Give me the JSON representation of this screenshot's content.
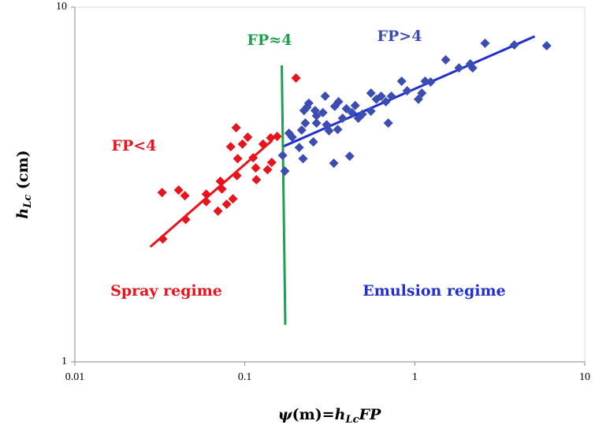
{
  "chart_data": {
    "type": "scatter",
    "xlabel_parts": [
      "ψ",
      "(m)=",
      "h",
      "Lc",
      "FP"
    ],
    "ylabel_parts": [
      "h",
      "Lc",
      " (cm)"
    ],
    "xlog": true,
    "ylog": true,
    "xlim": [
      0.01,
      10
    ],
    "ylim": [
      1,
      10
    ],
    "xticks": [
      0.01,
      0.1,
      1,
      10
    ],
    "yticks": [
      1,
      10
    ],
    "series": [
      {
        "color": "#e8141c",
        "x": [
          0.0326,
          0.0329,
          0.0408,
          0.0444,
          0.0449,
          0.0593,
          0.0593,
          0.0695,
          0.0718,
          0.0734,
          0.0782,
          0.0826,
          0.0851,
          0.0889,
          0.0899,
          0.0908,
          0.0968,
          0.104,
          0.112,
          0.116,
          0.117,
          0.128,
          0.136,
          0.142,
          0.144,
          0.155,
          0.2
        ],
        "values": [
          3.0,
          2.22,
          3.05,
          2.94,
          2.52,
          2.97,
          2.83,
          2.66,
          3.23,
          3.07,
          2.78,
          4.04,
          2.88,
          4.57,
          3.35,
          3.74,
          4.11,
          4.3,
          3.76,
          3.52,
          3.26,
          4.11,
          3.48,
          4.28,
          3.65,
          4.32,
          6.31
        ]
      },
      {
        "color": "#3b4db3",
        "x": [
          0.167,
          0.172,
          0.182,
          0.19,
          0.209,
          0.216,
          0.22,
          0.223,
          0.227,
          0.232,
          0.238,
          0.253,
          0.259,
          0.264,
          0.264,
          0.288,
          0.297,
          0.303,
          0.313,
          0.334,
          0.338,
          0.352,
          0.356,
          0.376,
          0.396,
          0.414,
          0.427,
          0.446,
          0.465,
          0.491,
          0.552,
          0.552,
          0.594,
          0.634,
          0.676,
          0.698,
          0.728,
          0.837,
          0.902,
          1.05,
          1.1,
          1.15,
          1.24,
          1.52,
          1.82,
          2.12,
          2.19,
          2.59,
          3.85,
          5.97
        ],
        "values": [
          3.82,
          3.45,
          4.41,
          4.3,
          4.02,
          4.5,
          3.74,
          5.11,
          4.71,
          5.22,
          5.36,
          4.17,
          5.11,
          4.71,
          4.94,
          5.04,
          5.61,
          4.66,
          4.48,
          3.63,
          5.25,
          4.52,
          5.41,
          4.86,
          5.17,
          3.8,
          5.04,
          5.28,
          4.86,
          4.99,
          5.72,
          5.09,
          5.5,
          5.61,
          5.41,
          4.71,
          5.61,
          6.18,
          5.81,
          5.5,
          5.72,
          6.18,
          6.15,
          7.1,
          6.74,
          6.92,
          6.74,
          7.91,
          7.82,
          7.78
        ]
      }
    ],
    "lines": [
      {
        "color": "#e8141c",
        "x": [
          0.0278,
          0.145
        ],
        "values": [
          2.11,
          4.21
        ]
      },
      {
        "color": "#1f2fd0",
        "x": [
          0.167,
          5.08
        ],
        "values": [
          4.04,
          8.27
        ]
      },
      {
        "color": "#1fa050",
        "x": [
          0.165,
          0.173
        ],
        "values": [
          6.85,
          1.27
        ]
      }
    ],
    "annotations": [
      {
        "text": "FP<4",
        "color": "#e8141c"
      },
      {
        "text": "FP≈4",
        "color": "#1fa050"
      },
      {
        "text": "FP>4",
        "color": "#3b4db3"
      },
      {
        "text": "Spray regime",
        "color": "#e8141c"
      },
      {
        "text": "Emulsion  regime",
        "color": "#1f2fd0"
      }
    ]
  }
}
